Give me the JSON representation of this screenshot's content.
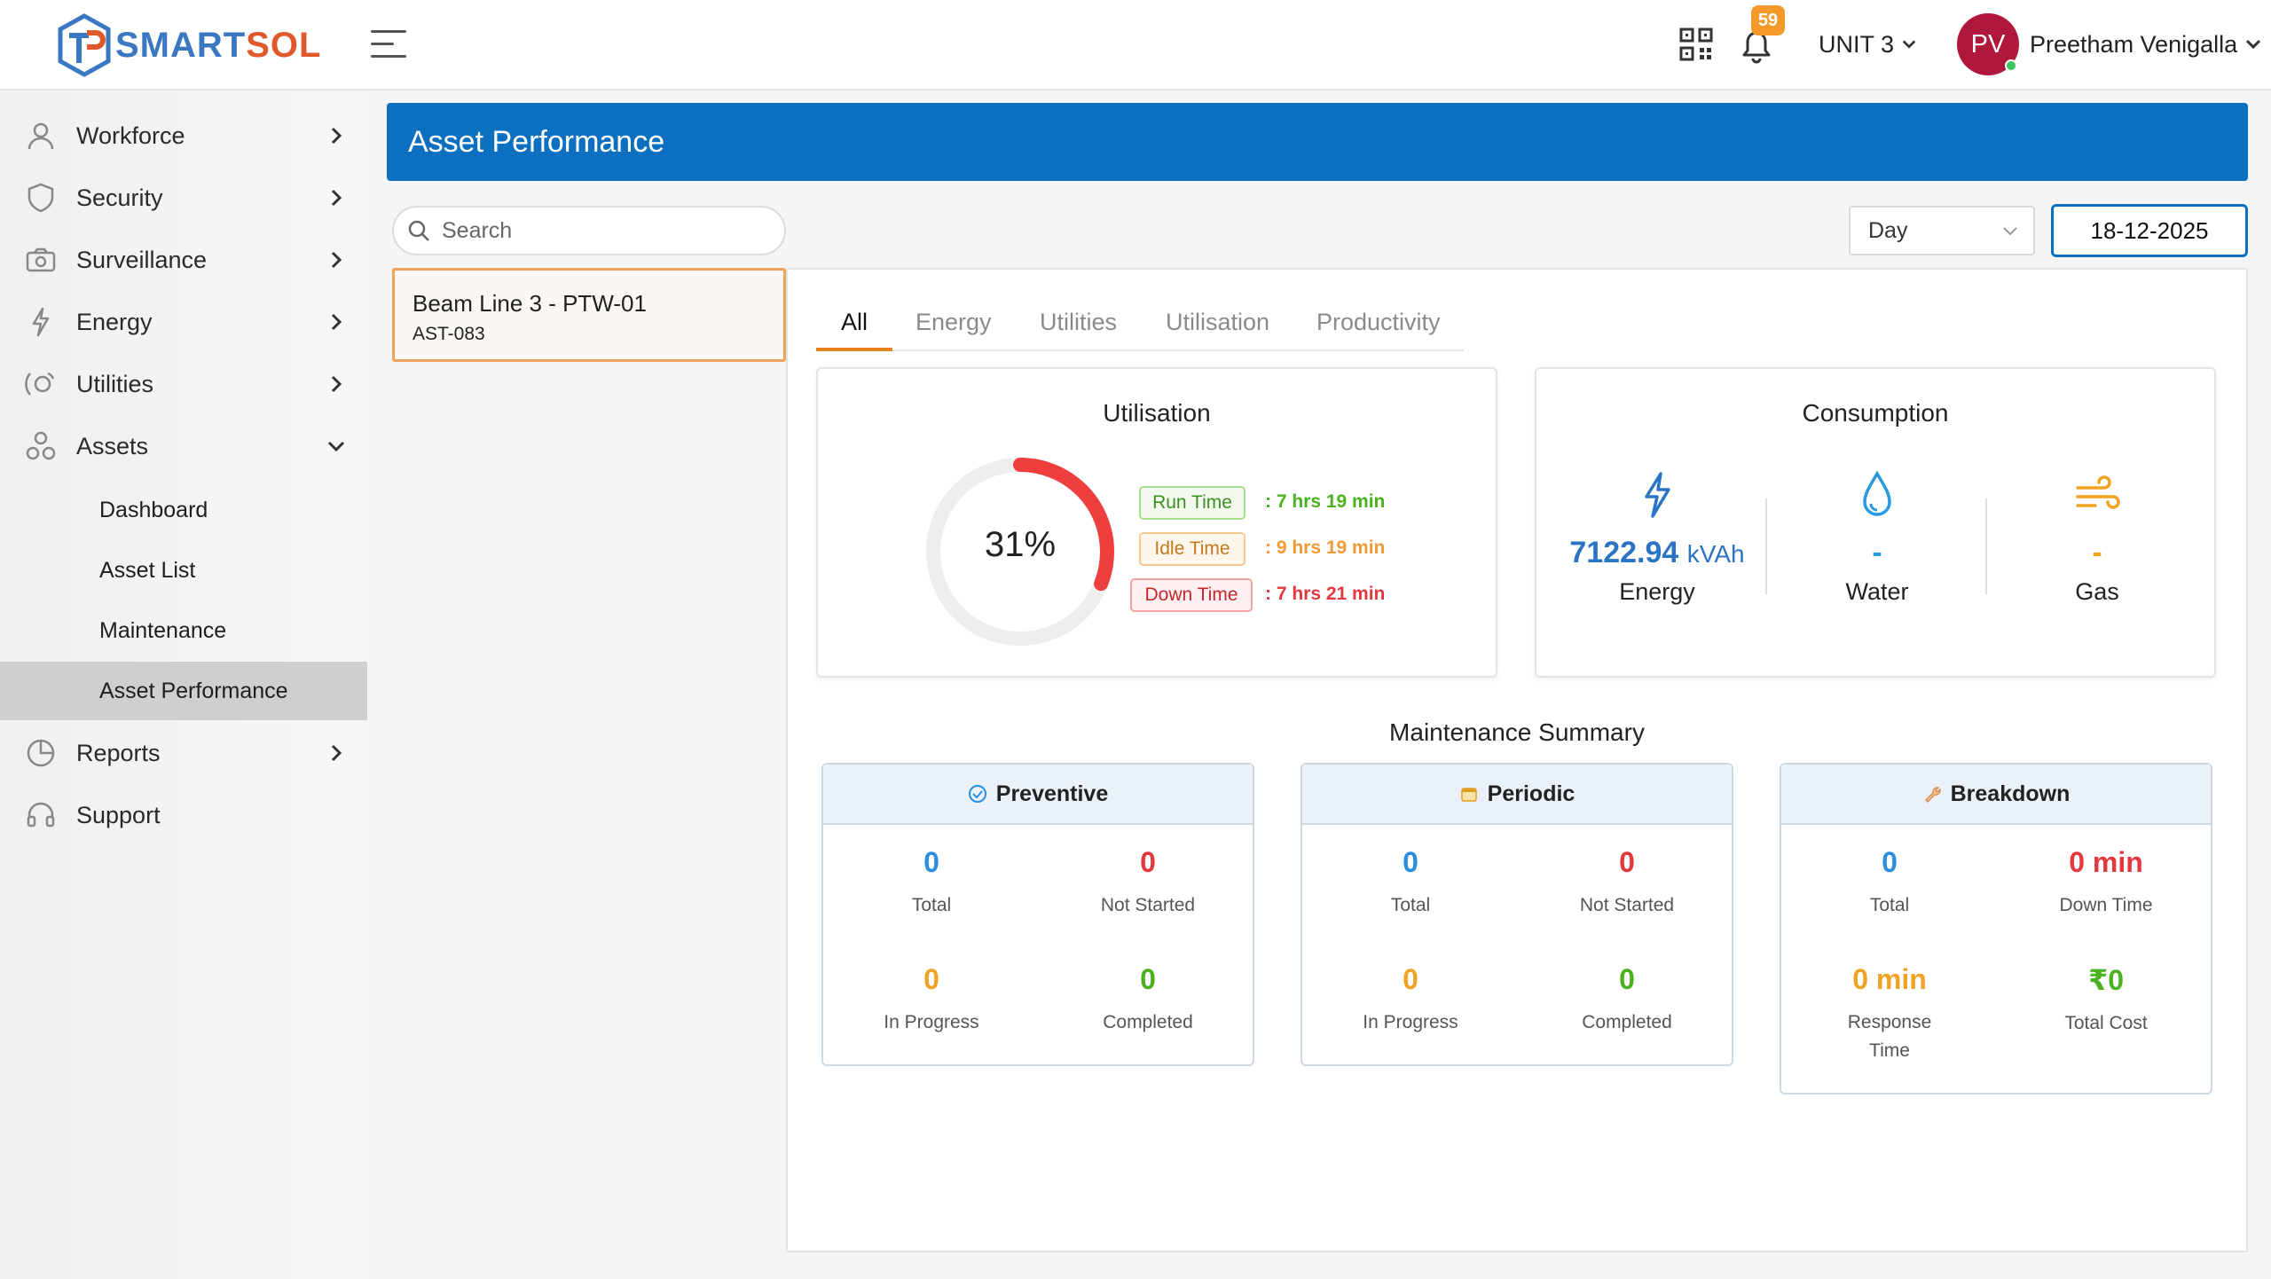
{
  "brand": {
    "name_part1": "SMART",
    "name_part2": "SOL"
  },
  "header": {
    "notification_count": "59",
    "unit": "UNIT 3",
    "user_initials": "PV",
    "user_name": "Preetham Venigalla"
  },
  "sidebar": {
    "items": [
      {
        "label": "Workforce",
        "icon": "person-icon"
      },
      {
        "label": "Security",
        "icon": "shield-icon"
      },
      {
        "label": "Surveillance",
        "icon": "camera-icon"
      },
      {
        "label": "Energy",
        "icon": "bolt-icon"
      },
      {
        "label": "Utilities",
        "icon": "satellite-icon"
      },
      {
        "label": "Assets",
        "icon": "cluster-icon"
      }
    ],
    "asset_subitems": [
      "Dashboard",
      "Asset List",
      "Maintenance",
      "Asset Performance"
    ],
    "bottom_items": [
      {
        "label": "Reports",
        "icon": "pie-chart-icon"
      },
      {
        "label": "Support",
        "icon": "headset-icon"
      }
    ]
  },
  "page": {
    "title": "Asset Performance"
  },
  "filters": {
    "search_placeholder": "Search",
    "period": "Day",
    "date": "18-12-2025"
  },
  "asset": {
    "name": "Beam Line 3 - PTW-01",
    "id": "AST-083"
  },
  "tabs": [
    "All",
    "Energy",
    "Utilities",
    "Utilisation",
    "Productivity"
  ],
  "utilisation": {
    "title": "Utilisation",
    "percent": 31,
    "percent_label": "31%",
    "run_label": "Run Time",
    "run_value": ": 7 hrs 19 min",
    "idle_label": "Idle Time",
    "idle_value": ": 9 hrs 19 min",
    "down_label": "Down Time",
    "down_value": ": 7 hrs 21 min"
  },
  "consumption": {
    "title": "Consumption",
    "energy_value": "7122.94",
    "energy_unit": "kVAh",
    "energy_label": "Energy",
    "water_value": "-",
    "water_label": "Water",
    "gas_value": "-",
    "gas_label": "Gas"
  },
  "maintenance": {
    "title": "Maintenance Summary",
    "preventive": {
      "title": "Preventive",
      "total": "0",
      "total_label": "Total",
      "not_started": "0",
      "not_started_label": "Not Started",
      "in_progress": "0",
      "in_progress_label": "In Progress",
      "completed": "0",
      "completed_label": "Completed"
    },
    "periodic": {
      "title": "Periodic",
      "total": "0",
      "total_label": "Total",
      "not_started": "0",
      "not_started_label": "Not Started",
      "in_progress": "0",
      "in_progress_label": "In Progress",
      "completed": "0",
      "completed_label": "Completed"
    },
    "breakdown": {
      "title": "Breakdown",
      "total": "0",
      "total_label": "Total",
      "down_time": "0 min",
      "down_time_label": "Down Time",
      "response_time": "0 min",
      "response_time_label": "Response Time",
      "total_cost": "₹0",
      "total_cost_label": "Total Cost"
    }
  },
  "colors": {
    "primary": "#0c6fc0",
    "accent": "#e67e22",
    "run": "#4ab21e",
    "idle": "#ef9a36",
    "down": "#e4383f"
  }
}
